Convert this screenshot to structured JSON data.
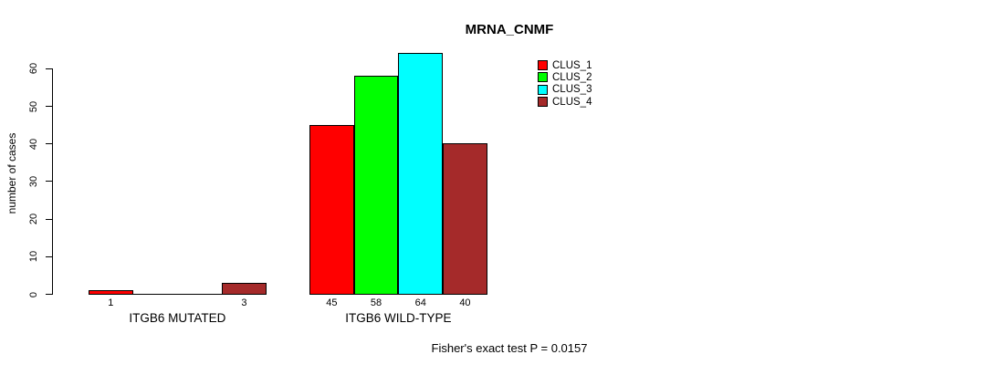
{
  "chart_data": {
    "type": "bar",
    "title": "MRNA_CNMF",
    "ylabel": "number of cases",
    "ylim": [
      0,
      60
    ],
    "yticks": [
      0,
      10,
      20,
      30,
      40,
      50,
      60
    ],
    "grid": false,
    "legend_position": "top-right",
    "series_names": [
      "CLUS_1",
      "CLUS_2",
      "CLUS_3",
      "CLUS_4"
    ],
    "colors": [
      "#FF0000",
      "#00FF00",
      "#00FFFF",
      "#A52A2A"
    ],
    "groups": [
      {
        "label": "ITGB6 MUTATED",
        "values": [
          1,
          0,
          0,
          3
        ]
      },
      {
        "label": "ITGB6 WILD-TYPE",
        "values": [
          45,
          58,
          64,
          40
        ]
      }
    ],
    "annotation": "Fisher's exact test P = 0.0157"
  },
  "legend": {
    "entries": [
      {
        "label": "CLUS_1",
        "color": "#FF0000"
      },
      {
        "label": "CLUS_2",
        "color": "#00FF00"
      },
      {
        "label": "CLUS_3",
        "color": "#00FFFF"
      },
      {
        "label": "CLUS_4",
        "color": "#A52A2A"
      }
    ]
  },
  "axis_color": "#000000"
}
